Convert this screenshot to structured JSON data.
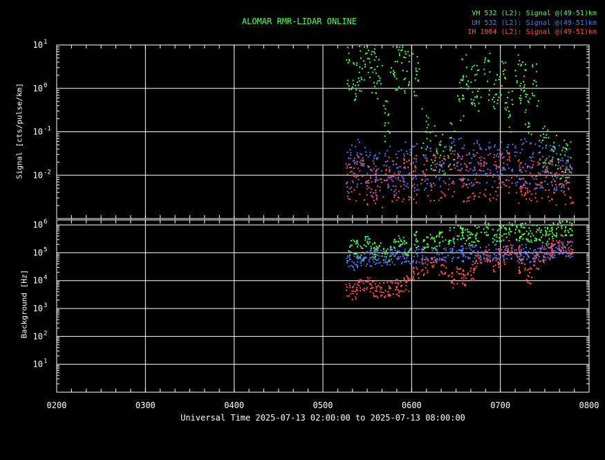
{
  "chart_data": {
    "type": "scatter",
    "title": "ALOMAR RMR-LIDAR ONLINE",
    "xlabel": "Universal Time 2025-07-13 02:00:00 to 2025-07-13 08:00:00",
    "x_ticks": [
      "0200",
      "0300",
      "0400",
      "0500",
      "0600",
      "0700",
      "0800"
    ],
    "xlim": [
      2.0,
      8.0
    ],
    "grid": true,
    "legend_position": "top-right",
    "series": [
      {
        "name": "VH 532 (L2): Signal @(49-51)km",
        "color": "#55ff55"
      },
      {
        "name": "UH 532 (L2): Signal @(49-51)km",
        "color": "#5577ff"
      },
      {
        "name": "IH 1064 (L2): Signal @(49-51)km",
        "color": "#ff5555"
      }
    ],
    "panels": [
      {
        "ylabel": "Signal [cts/pulse/km]",
        "yscale": "log",
        "ylim": [
          0.001,
          10
        ],
        "y_ticks": [
          {
            "base": "10",
            "exp": "1",
            "v": 10
          },
          {
            "base": "10",
            "exp": "0",
            "v": 1
          },
          {
            "base": "10",
            "exp": "-1",
            "v": 0.1
          },
          {
            "base": "10",
            "exp": "-2",
            "v": 0.01
          }
        ],
        "series": [
          {
            "name": "VH 532 (L2): Signal @(49-51)km",
            "x": [
              5.27,
              5.35,
              5.42,
              5.5,
              5.57,
              5.63,
              5.72,
              5.8,
              5.88,
              5.95,
              6.05,
              6.15,
              6.25,
              6.35,
              6.45,
              6.55,
              6.6,
              6.68,
              6.75,
              6.85,
              6.95,
              7.02,
              7.1,
              7.2,
              7.25,
              7.32,
              7.4,
              7.48,
              7.55,
              7.62,
              7.7,
              7.78
            ],
            "y": [
              2.5,
              1.5,
              3.0,
              3.0,
              2.8,
              2.0,
              0.15,
              3.0,
              2.8,
              2.5,
              1.8,
              0.1,
              0.04,
              0.03,
              0.05,
              0.6,
              2.0,
              1.5,
              1.0,
              1.8,
              0.9,
              1.2,
              0.3,
              1.8,
              1.5,
              0.3,
              1.2,
              0.05,
              0.04,
              0.03,
              0.02,
              0.02
            ]
          },
          {
            "name": "UH 532 (L2): Signal @(49-51)km",
            "x": [
              5.27,
              5.35,
              5.42,
              5.5,
              5.57,
              5.63,
              5.72,
              5.8,
              5.88,
              5.95,
              6.05,
              6.15,
              6.25,
              6.35,
              6.45,
              6.55,
              6.6,
              6.68,
              6.75,
              6.85,
              6.95,
              7.02,
              7.1,
              7.2,
              7.25,
              7.32,
              7.4,
              7.48,
              7.55,
              7.62,
              7.7,
              7.78
            ],
            "y": [
              0.012,
              0.015,
              0.02,
              0.014,
              0.012,
              0.01,
              0.015,
              0.012,
              0.014,
              0.018,
              0.016,
              0.015,
              0.02,
              0.018,
              0.02,
              0.022,
              0.018,
              0.02,
              0.022,
              0.02,
              0.018,
              0.02,
              0.02,
              0.018,
              0.02,
              0.017,
              0.016,
              0.018,
              0.016,
              0.015,
              0.014,
              0.015
            ]
          },
          {
            "name": "IH 1064 (L2): Signal @(49-51)km",
            "x": [
              5.27,
              5.35,
              5.42,
              5.5,
              5.57,
              5.63,
              5.72,
              5.8,
              5.88,
              5.95,
              6.05,
              6.15,
              6.25,
              6.35,
              6.45,
              6.55,
              6.6,
              6.68,
              6.75,
              6.85,
              6.95,
              7.02,
              7.1,
              7.2,
              7.25,
              7.32,
              7.4,
              7.48,
              7.55,
              7.62,
              7.7,
              7.78
            ],
            "y": [
              0.006,
              0.008,
              0.01,
              0.007,
              0.006,
              0.005,
              0.008,
              0.007,
              0.008,
              0.009,
              0.008,
              0.007,
              0.009,
              0.008,
              0.01,
              0.009,
              0.008,
              0.009,
              0.01,
              0.009,
              0.008,
              0.009,
              0.01,
              0.008,
              0.009,
              0.008,
              0.007,
              0.008,
              0.007,
              0.007,
              0.006,
              0.007
            ]
          }
        ]
      },
      {
        "ylabel": "Background [Hz]",
        "yscale": "log",
        "ylim": [
          1,
          1500000
        ],
        "y_ticks": [
          {
            "base": "10",
            "exp": "6",
            "v": 1000000
          },
          {
            "base": "10",
            "exp": "5",
            "v": 100000
          },
          {
            "base": "10",
            "exp": "4",
            "v": 10000
          },
          {
            "base": "10",
            "exp": "3",
            "v": 1000
          },
          {
            "base": "10",
            "exp": "2",
            "v": 100
          },
          {
            "base": "10",
            "exp": "1",
            "v": 10
          }
        ],
        "series": [
          {
            "name": "VH 532 (L2): Signal @(49-51)km",
            "x": [
              5.27,
              5.35,
              5.42,
              5.5,
              5.57,
              5.63,
              5.72,
              5.8,
              5.88,
              5.95,
              6.05,
              6.15,
              6.25,
              6.35,
              6.45,
              6.55,
              6.6,
              6.68,
              6.75,
              6.85,
              6.95,
              7.02,
              7.1,
              7.2,
              7.25,
              7.32,
              7.4,
              7.48,
              7.55,
              7.62,
              7.7,
              7.78
            ],
            "y": [
              100000,
              150000,
              100000,
              200000,
              120000,
              150000,
              100000,
              150000,
              200000,
              150000,
              300000,
              200000,
              250000,
              300000,
              400000,
              500000,
              400000,
              300000,
              500000,
              600000,
              400000,
              500000,
              600000,
              500000,
              600000,
              400000,
              500000,
              400000,
              500000,
              600000,
              700000,
              800000
            ]
          },
          {
            "name": "UH 532 (L2): Signal @(49-51)km",
            "x": [
              5.27,
              5.35,
              5.42,
              5.5,
              5.57,
              5.63,
              5.72,
              5.8,
              5.88,
              5.95,
              6.05,
              6.15,
              6.25,
              6.35,
              6.45,
              6.55,
              6.6,
              6.68,
              6.75,
              6.85,
              6.95,
              7.02,
              7.1,
              7.2,
              7.25,
              7.32,
              7.4,
              7.48,
              7.55,
              7.62,
              7.7,
              7.78
            ],
            "y": [
              50000,
              45000,
              48000,
              55000,
              60000,
              65000,
              70000,
              75000,
              70000,
              72000,
              75000,
              80000,
              85000,
              90000,
              90000,
              95000,
              90000,
              95000,
              100000,
              95000,
              100000,
              95000,
              100000,
              95000,
              100000,
              90000,
              95000,
              100000,
              110000,
              120000,
              130000,
              130000
            ]
          },
          {
            "name": "IH 1064 (L2): Signal @(49-51)km",
            "x": [
              5.27,
              5.35,
              5.42,
              5.5,
              5.57,
              5.63,
              5.72,
              5.8,
              5.88,
              5.95,
              6.05,
              6.15,
              6.25,
              6.35,
              6.45,
              6.55,
              6.6,
              6.68,
              6.75,
              6.85,
              6.95,
              7.02,
              7.1,
              7.2,
              7.25,
              7.32,
              7.4,
              7.48,
              7.55,
              7.62,
              7.7,
              7.78
            ],
            "y": [
              5000,
              4000,
              6000,
              8000,
              5000,
              4500,
              5000,
              6000,
              5000,
              8000,
              15000,
              30000,
              60000,
              30000,
              10000,
              15000,
              12000,
              20000,
              60000,
              80000,
              40000,
              70000,
              150000,
              100000,
              30000,
              15000,
              50000,
              80000,
              120000,
              150000,
              200000,
              150000
            ]
          }
        ]
      }
    ]
  }
}
